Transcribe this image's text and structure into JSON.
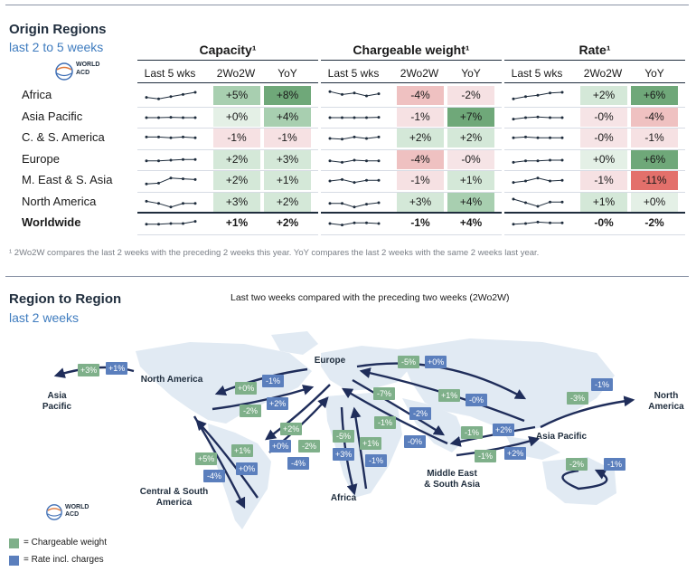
{
  "section1": {
    "title": "Origin Regions",
    "subtitle": "last 2 to 5 weeks",
    "groups": [
      {
        "title": "Capacity¹",
        "col_last": "Last 5 wks",
        "col_w": "2Wo2W",
        "col_y": "YoY"
      },
      {
        "title": "Chargeable weight¹",
        "col_last": "Last 5 wks",
        "col_w": "2Wo2W",
        "col_y": "YoY"
      },
      {
        "title": "Rate¹",
        "col_last": "Last 5 wks",
        "col_w": "2Wo2W",
        "col_y": "YoY"
      }
    ],
    "footnote": "¹ 2Wo2W compares the last 2 weeks with the preceding 2 weeks this year. YoY compares the last 2 weeks with the same 2 weeks last year."
  },
  "logo": {
    "line1": "WORLD",
    "line2": "ACD"
  },
  "chart_data": [
    {
      "type": "table",
      "title": "Origin Regions",
      "subtitle": "last 2 to 5 weeks",
      "columns": [
        "Capacity 2Wo2W",
        "Capacity YoY",
        "Chargeable weight 2Wo2W",
        "Chargeable weight YoY",
        "Rate 2Wo2W",
        "Rate YoY"
      ],
      "rows": [
        {
          "region": "Africa",
          "values": [
            "+5%",
            "+8%",
            "-4%",
            "-2%",
            "+2%",
            "+6%"
          ],
          "spark": [
            [
              0.4,
              0.3,
              0.45,
              0.6,
              0.75
            ],
            [
              0.8,
              0.6,
              0.7,
              0.5,
              0.65
            ],
            [
              0.3,
              0.45,
              0.55,
              0.7,
              0.75
            ]
          ]
        },
        {
          "region": "Asia Pacific",
          "values": [
            "+0%",
            "+4%",
            "-1%",
            "+7%",
            "-0%",
            "-4%"
          ],
          "spark": [
            [
              0.5,
              0.5,
              0.52,
              0.5,
              0.5
            ],
            [
              0.5,
              0.5,
              0.5,
              0.5,
              0.52
            ],
            [
              0.4,
              0.5,
              0.55,
              0.5,
              0.5
            ]
          ]
        },
        {
          "region": "C. & S. America",
          "values": [
            "-1%",
            "-1%",
            "+2%",
            "+2%",
            "-0%",
            "-1%"
          ],
          "spark": [
            [
              0.6,
              0.6,
              0.55,
              0.6,
              0.55
            ],
            [
              0.5,
              0.45,
              0.6,
              0.5,
              0.6
            ],
            [
              0.55,
              0.6,
              0.55,
              0.55,
              0.55
            ]
          ]
        },
        {
          "region": "Europe",
          "values": [
            "+2%",
            "+3%",
            "-4%",
            "-0%",
            "+0%",
            "+6%"
          ],
          "spark": [
            [
              0.45,
              0.45,
              0.5,
              0.55,
              0.55
            ],
            [
              0.45,
              0.35,
              0.5,
              0.45,
              0.45
            ],
            [
              0.35,
              0.45,
              0.45,
              0.5,
              0.5
            ]
          ]
        },
        {
          "region": "M. East & S. Asia",
          "values": [
            "+2%",
            "+1%",
            "-1%",
            "+1%",
            "-1%",
            "-11%"
          ],
          "spark": [
            [
              0.3,
              0.35,
              0.7,
              0.65,
              0.6
            ],
            [
              0.5,
              0.6,
              0.4,
              0.55,
              0.55
            ],
            [
              0.4,
              0.5,
              0.7,
              0.5,
              0.55
            ]
          ]
        },
        {
          "region": "North America",
          "values": [
            "+3%",
            "+2%",
            "+3%",
            "+4%",
            "+1%",
            "+0%"
          ],
          "spark": [
            [
              0.6,
              0.45,
              0.2,
              0.45,
              0.45
            ],
            [
              0.45,
              0.45,
              0.2,
              0.4,
              0.5
            ],
            [
              0.75,
              0.5,
              0.25,
              0.55,
              0.55
            ]
          ]
        },
        {
          "region": "Worldwide",
          "values": [
            "+1%",
            "+2%",
            "-1%",
            "+4%",
            "-0%",
            "-2%"
          ],
          "spark": [
            [
              0.45,
              0.45,
              0.5,
              0.5,
              0.65
            ],
            [
              0.5,
              0.4,
              0.55,
              0.55,
              0.5
            ],
            [
              0.45,
              0.5,
              0.6,
              0.55,
              0.55
            ]
          ]
        }
      ]
    },
    {
      "type": "table",
      "title": "Region to Region",
      "subtitle": "last 2 weeks",
      "note": "Last two weeks compared with the preceding two weeks (2Wo2W)",
      "flows": [
        {
          "route": "North America -> Asia Pacific",
          "chargeable_weight": "+3%",
          "rate": "+1%"
        },
        {
          "route": "Europe -> North America",
          "chargeable_weight": "+0%",
          "rate": "-1%"
        },
        {
          "route": "North America -> Europe",
          "chargeable_weight": "-2%",
          "rate": "+2%"
        },
        {
          "route": "Europe -> Asia Pacific",
          "chargeable_weight": "-5%",
          "rate": "+0%"
        },
        {
          "route": "Asia Pacific -> Europe",
          "chargeable_weight": "+1%",
          "rate": "-0%"
        },
        {
          "route": "Europe -> Middle East & South Asia",
          "chargeable_weight": "-7%",
          "rate": "-2%"
        },
        {
          "route": "Middle East & South Asia -> Europe",
          "chargeable_weight": "-1%",
          "rate": "-0%"
        },
        {
          "route": "Europe -> Central & South America",
          "chargeable_weight": "+2%",
          "rate": "+0%"
        },
        {
          "route": "Central & South America -> Europe",
          "chargeable_weight": "-2%",
          "rate": "-4%"
        },
        {
          "route": "North America -> Central & South America",
          "chargeable_weight": "+5%",
          "rate": "-4%"
        },
        {
          "route": "Central & South America -> North America",
          "chargeable_weight": "+1%",
          "rate": "+0%"
        },
        {
          "route": "Europe -> Africa",
          "chargeable_weight": "-5%",
          "rate": "+3%"
        },
        {
          "route": "Africa -> Europe",
          "chargeable_weight": "+1%",
          "rate": "-1%"
        },
        {
          "route": "Asia Pacific -> Middle East & South Asia",
          "chargeable_weight": "-1%",
          "rate": "+2%"
        },
        {
          "route": "Middle East & South Asia -> Asia Pacific",
          "chargeable_weight": "-1%",
          "rate": "+2%"
        },
        {
          "route": "Asia Pacific -> North America",
          "chargeable_weight": "-3%",
          "rate": "-1%"
        },
        {
          "route": "Intra Asia Pacific",
          "chargeable_weight": "-2%",
          "rate": "-1%"
        }
      ]
    }
  ],
  "section2": {
    "title": "Region to Region",
    "subtitle": "last 2 weeks",
    "note": "Last two weeks compared with the preceding two weeks (2Wo2W)"
  },
  "map": {
    "labels": {
      "asia_pacific_w": "Asia\nPacific",
      "north_america": "North America",
      "europe": "Europe",
      "north_america_e": "North\nAmerica",
      "asia_pacific": "Asia Pacific",
      "middle_east": "Middle East\n& South Asia",
      "africa": "Africa",
      "central_south": "Central & South\nAmerica"
    },
    "tags": [
      {
        "t": "+3%",
        "c": "g"
      },
      {
        "t": "+1%",
        "c": "b"
      },
      {
        "t": "+0%",
        "c": "g"
      },
      {
        "t": "-1%",
        "c": "b"
      },
      {
        "t": "-2%",
        "c": "g"
      },
      {
        "t": "+2%",
        "c": "b"
      },
      {
        "t": "-5%",
        "c": "g"
      },
      {
        "t": "+0%",
        "c": "b"
      },
      {
        "t": "-7%",
        "c": "g"
      },
      {
        "t": "+1%",
        "c": "g"
      },
      {
        "t": "-0%",
        "c": "b"
      },
      {
        "t": "-2%",
        "c": "b"
      },
      {
        "t": "-1%",
        "c": "g"
      },
      {
        "t": "-0%",
        "c": "b"
      },
      {
        "t": "-1%",
        "c": "g"
      },
      {
        "t": "+2%",
        "c": "b"
      },
      {
        "t": "-1%",
        "c": "g"
      },
      {
        "t": "+2%",
        "c": "b"
      },
      {
        "t": "+2%",
        "c": "g"
      },
      {
        "t": "+0%",
        "c": "b"
      },
      {
        "t": "-2%",
        "c": "g"
      },
      {
        "t": "-4%",
        "c": "b"
      },
      {
        "t": "+5%",
        "c": "g"
      },
      {
        "t": "-4%",
        "c": "b"
      },
      {
        "t": "+1%",
        "c": "g"
      },
      {
        "t": "+0%",
        "c": "b"
      },
      {
        "t": "-5%",
        "c": "g"
      },
      {
        "t": "+3%",
        "c": "b"
      },
      {
        "t": "+1%",
        "c": "g"
      },
      {
        "t": "-1%",
        "c": "b"
      },
      {
        "t": "-3%",
        "c": "g"
      },
      {
        "t": "-1%",
        "c": "b"
      },
      {
        "t": "-2%",
        "c": "g"
      },
      {
        "t": "-1%",
        "c": "b"
      }
    ]
  },
  "legend": {
    "green": "= Chargeable weight",
    "blue": "= Rate incl. charges",
    "green_color": "#7fb08a",
    "blue_color": "#5b7fbd"
  }
}
